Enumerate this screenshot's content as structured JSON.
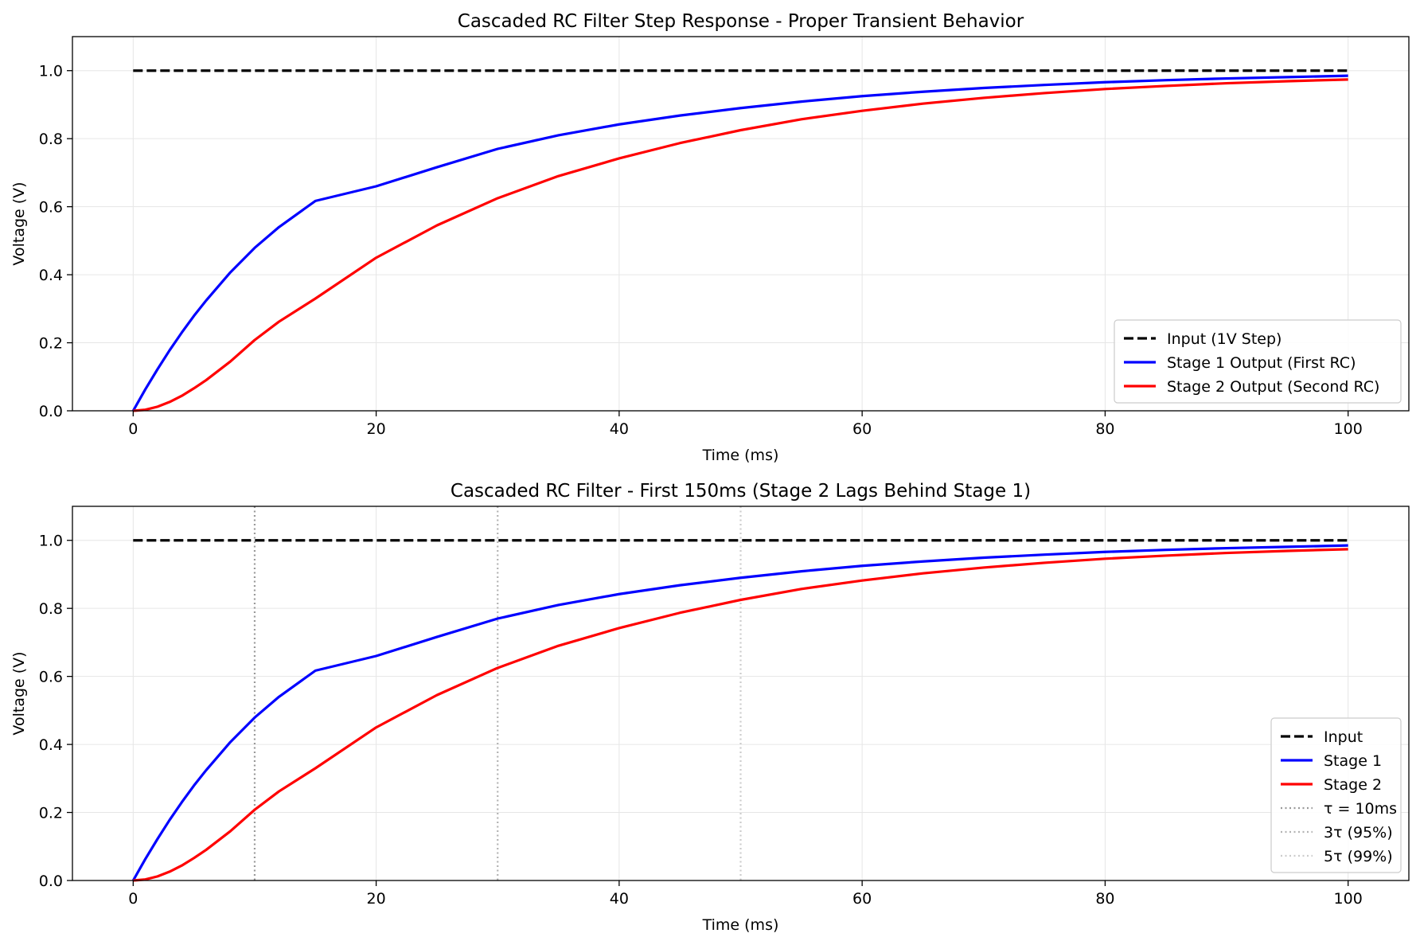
{
  "chart_data": [
    {
      "type": "line",
      "title": "Cascaded RC Filter Step Response - Proper Transient Behavior",
      "xlabel": "Time (ms)",
      "ylabel": "Voltage (V)",
      "xlim": [
        -5,
        105
      ],
      "ylim": [
        0,
        1.1
      ],
      "xticks": [
        0,
        20,
        40,
        60,
        80,
        100
      ],
      "yticks": [
        0.0,
        0.2,
        0.4,
        0.6,
        0.8,
        1.0
      ],
      "xtick_labels": [
        "0",
        "20",
        "40",
        "60",
        "80",
        "100"
      ],
      "ytick_labels": [
        "0.0",
        "0.2",
        "0.4",
        "0.6",
        "0.8",
        "1.0"
      ],
      "grid": true,
      "legend_position": "lower-right",
      "series": [
        {
          "name": "Input (1V Step)",
          "color": "#000000",
          "style": "dashed",
          "x": [
            0,
            100
          ],
          "y": [
            1.0,
            1.0
          ]
        },
        {
          "name": "Stage 1 Output (First RC)",
          "color": "#0000ff",
          "style": "solid",
          "x": [
            0,
            1,
            2,
            3,
            4,
            5,
            6,
            8,
            10,
            12,
            15,
            20,
            25,
            30,
            35,
            40,
            45,
            50,
            55,
            60,
            65,
            70,
            75,
            80,
            85,
            90,
            95,
            100
          ],
          "y": [
            0,
            0.063,
            0.122,
            0.178,
            0.23,
            0.279,
            0.324,
            0.407,
            0.479,
            0.54,
            0.617,
            0.66,
            0.716,
            0.77,
            0.81,
            0.842,
            0.868,
            0.89,
            0.909,
            0.925,
            0.938,
            0.949,
            0.958,
            0.966,
            0.972,
            0.977,
            0.981,
            0.985
          ]
        },
        {
          "name": "Stage 2 Output (Second RC)",
          "color": "#ff0000",
          "style": "solid",
          "x": [
            0,
            1,
            2,
            3,
            4,
            5,
            6,
            8,
            10,
            12,
            15,
            20,
            25,
            30,
            35,
            40,
            45,
            50,
            55,
            60,
            65,
            70,
            75,
            80,
            85,
            90,
            95,
            100
          ],
          "y": [
            0,
            0.003,
            0.012,
            0.026,
            0.044,
            0.066,
            0.09,
            0.145,
            0.208,
            0.262,
            0.33,
            0.45,
            0.545,
            0.625,
            0.69,
            0.742,
            0.787,
            0.825,
            0.857,
            0.882,
            0.903,
            0.92,
            0.934,
            0.946,
            0.955,
            0.963,
            0.969,
            0.974
          ]
        }
      ],
      "vlines": []
    },
    {
      "type": "line",
      "title": "Cascaded RC Filter - First 150ms (Stage 2 Lags Behind Stage 1)",
      "xlabel": "Time (ms)",
      "ylabel": "Voltage (V)",
      "xlim": [
        -5,
        105
      ],
      "ylim": [
        0,
        1.1
      ],
      "xticks": [
        0,
        20,
        40,
        60,
        80,
        100
      ],
      "yticks": [
        0.0,
        0.2,
        0.4,
        0.6,
        0.8,
        1.0
      ],
      "xtick_labels": [
        "0",
        "20",
        "40",
        "60",
        "80",
        "100"
      ],
      "ytick_labels": [
        "0.0",
        "0.2",
        "0.4",
        "0.6",
        "0.8",
        "1.0"
      ],
      "grid": true,
      "legend_position": "lower-right",
      "series": [
        {
          "name": "Input",
          "color": "#000000",
          "style": "dashed",
          "x": [
            0,
            100
          ],
          "y": [
            1.0,
            1.0
          ]
        },
        {
          "name": "Stage 1",
          "color": "#0000ff",
          "style": "solid",
          "x": [
            0,
            1,
            2,
            3,
            4,
            5,
            6,
            8,
            10,
            12,
            15,
            20,
            25,
            30,
            35,
            40,
            45,
            50,
            55,
            60,
            65,
            70,
            75,
            80,
            85,
            90,
            95,
            100
          ],
          "y": [
            0,
            0.063,
            0.122,
            0.178,
            0.23,
            0.279,
            0.324,
            0.407,
            0.479,
            0.54,
            0.617,
            0.66,
            0.716,
            0.77,
            0.81,
            0.842,
            0.868,
            0.89,
            0.909,
            0.925,
            0.938,
            0.949,
            0.958,
            0.966,
            0.972,
            0.977,
            0.981,
            0.985
          ]
        },
        {
          "name": "Stage 2",
          "color": "#ff0000",
          "style": "solid",
          "x": [
            0,
            1,
            2,
            3,
            4,
            5,
            6,
            8,
            10,
            12,
            15,
            20,
            25,
            30,
            35,
            40,
            45,
            50,
            55,
            60,
            65,
            70,
            75,
            80,
            85,
            90,
            95,
            100
          ],
          "y": [
            0,
            0.003,
            0.012,
            0.026,
            0.044,
            0.066,
            0.09,
            0.145,
            0.208,
            0.262,
            0.33,
            0.45,
            0.545,
            0.625,
            0.69,
            0.742,
            0.787,
            0.825,
            0.857,
            0.882,
            0.903,
            0.92,
            0.934,
            0.946,
            0.955,
            0.963,
            0.969,
            0.974
          ]
        }
      ],
      "vlines": [
        {
          "name": "τ = 10ms",
          "x": 10,
          "color": "#999999"
        },
        {
          "name": "3τ (95%)",
          "x": 30,
          "color": "#b3b3b3"
        },
        {
          "name": "5τ (99%)",
          "x": 50,
          "color": "#cccccc"
        }
      ]
    }
  ]
}
